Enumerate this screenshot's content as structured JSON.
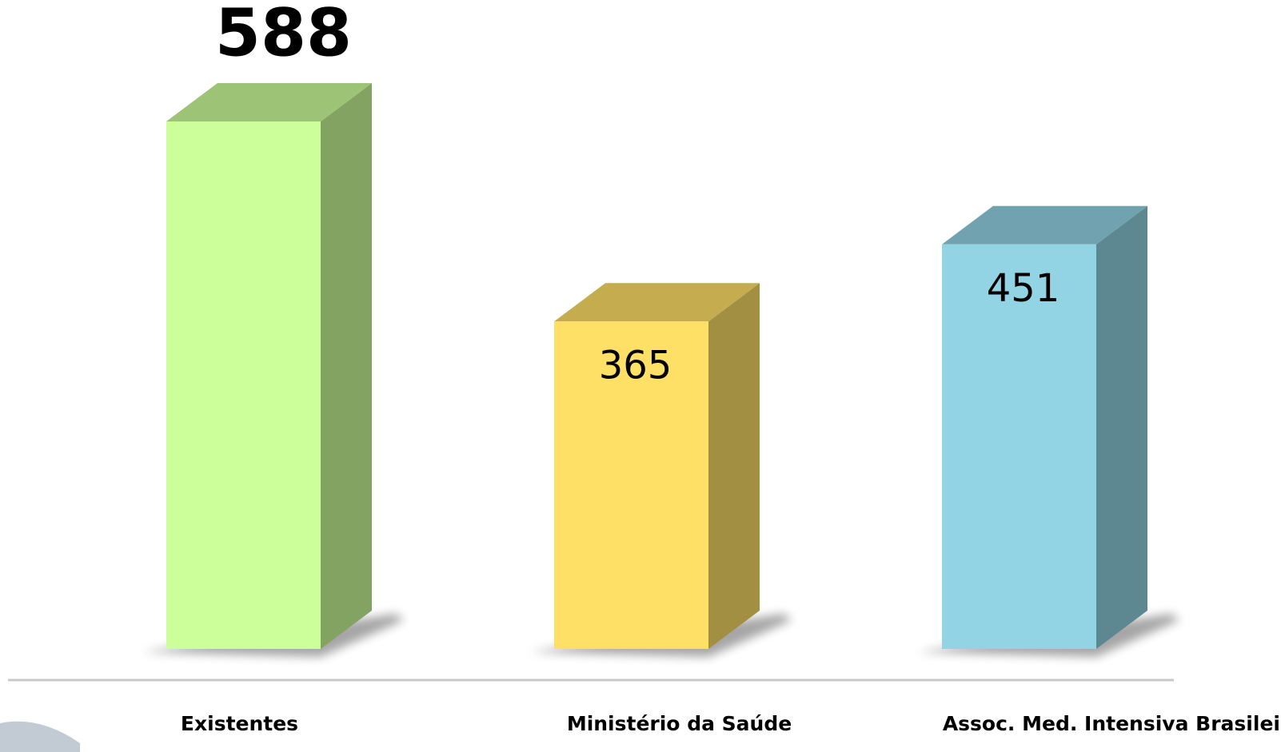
{
  "chart_data": {
    "type": "bar",
    "categories": [
      "Existentes",
      "Ministério da Saúde",
      "Assoc. Med. Intensiva Brasileira"
    ],
    "values": [
      588,
      365,
      451
    ],
    "colors": [
      "#ccff99",
      "#ffe066",
      "#92d4e3"
    ]
  }
}
